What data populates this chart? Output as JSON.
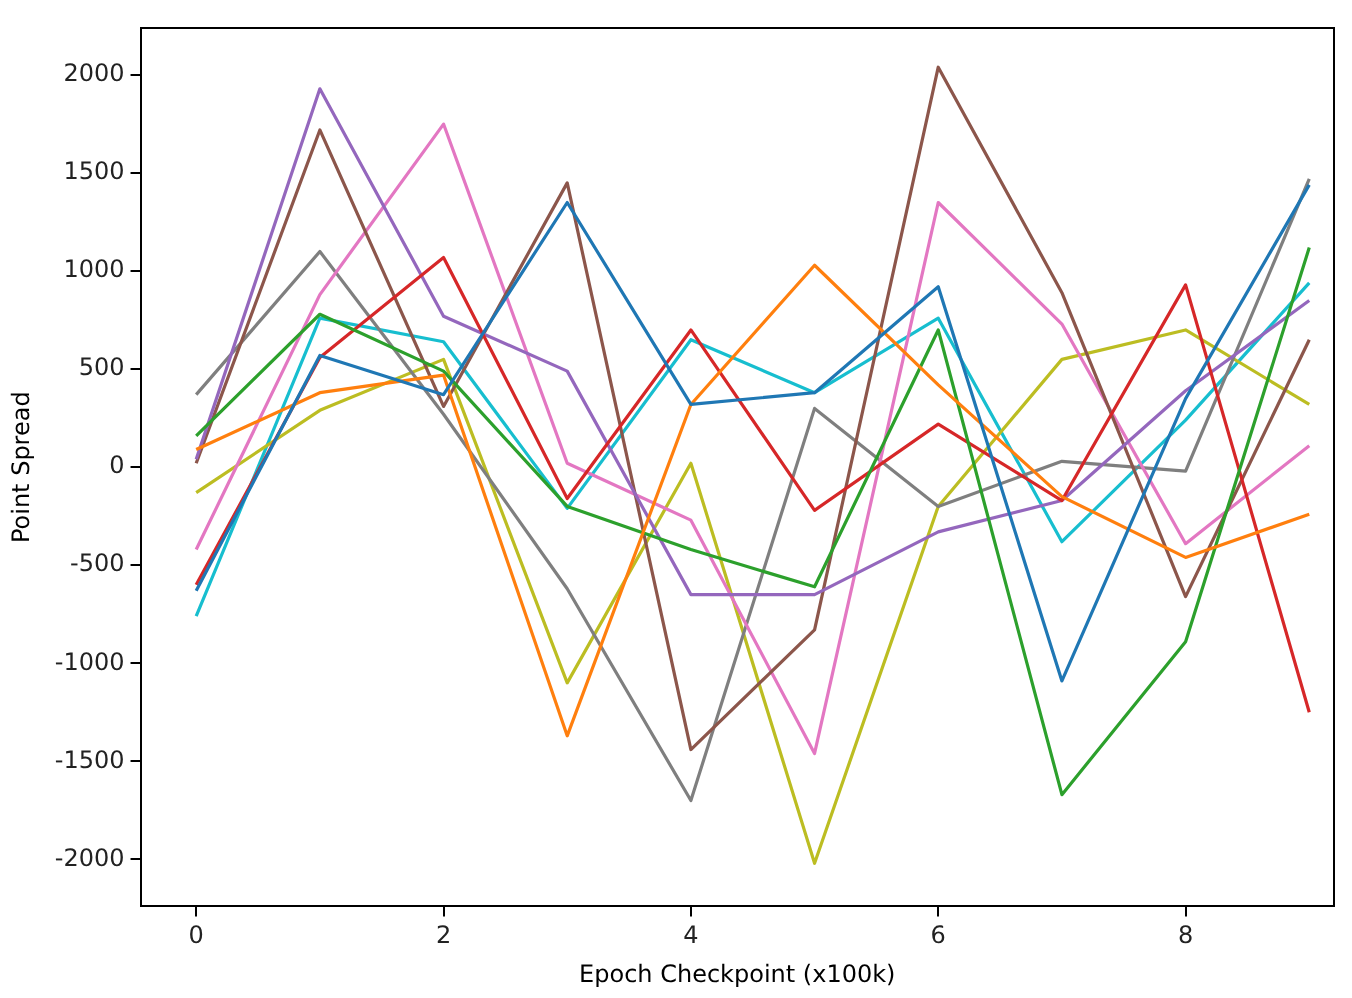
{
  "chart_data": {
    "type": "line",
    "xlabel": "Epoch Checkpoint (x100k)",
    "ylabel": "Point Spread",
    "x": [
      0,
      1,
      2,
      3,
      4,
      5,
      6,
      7,
      8,
      9
    ],
    "xlim": [
      -0.45,
      9.2
    ],
    "xticks": [
      0,
      2,
      4,
      6,
      8
    ],
    "ylim": [
      -2240,
      2240
    ],
    "yticks": [
      -2000,
      -1500,
      -1000,
      -500,
      0,
      500,
      1000,
      1500,
      2000
    ],
    "grid": false,
    "legend": false,
    "marker": "none",
    "line_style": "solid",
    "series": [
      {
        "color": "#1f77b4",
        "values": [
          -630,
          570,
          370,
          1350,
          320,
          380,
          920,
          -1090,
          350,
          1440
        ]
      },
      {
        "color": "#ff7f0e",
        "values": [
          90,
          380,
          470,
          -1370,
          320,
          1030,
          420,
          -150,
          -460,
          -240
        ]
      },
      {
        "color": "#2ca02c",
        "values": [
          160,
          780,
          490,
          -200,
          -420,
          -610,
          700,
          -1670,
          -890,
          1120
        ]
      },
      {
        "color": "#d62728",
        "values": [
          -600,
          560,
          1070,
          -160,
          700,
          -220,
          220,
          -170,
          930,
          -1250
        ]
      },
      {
        "color": "#9467bd",
        "values": [
          40,
          1930,
          770,
          490,
          -650,
          -650,
          -330,
          -170,
          390,
          850
        ]
      },
      {
        "color": "#8c564b",
        "values": [
          20,
          1720,
          310,
          1450,
          -1440,
          -830,
          2040,
          890,
          -660,
          650
        ]
      },
      {
        "color": "#e377c2",
        "values": [
          -420,
          880,
          1750,
          20,
          -270,
          -1460,
          1350,
          730,
          -390,
          110
        ]
      },
      {
        "color": "#7f7f7f",
        "values": [
          370,
          1100,
          270,
          -620,
          -1700,
          300,
          -200,
          30,
          -20,
          1470
        ]
      },
      {
        "color": "#bcbd22",
        "values": [
          -130,
          290,
          550,
          -1100,
          20,
          -2020,
          -200,
          550,
          700,
          320
        ]
      },
      {
        "color": "#17becf",
        "values": [
          -760,
          760,
          640,
          -210,
          650,
          380,
          760,
          -380,
          240,
          940
        ]
      }
    ]
  }
}
